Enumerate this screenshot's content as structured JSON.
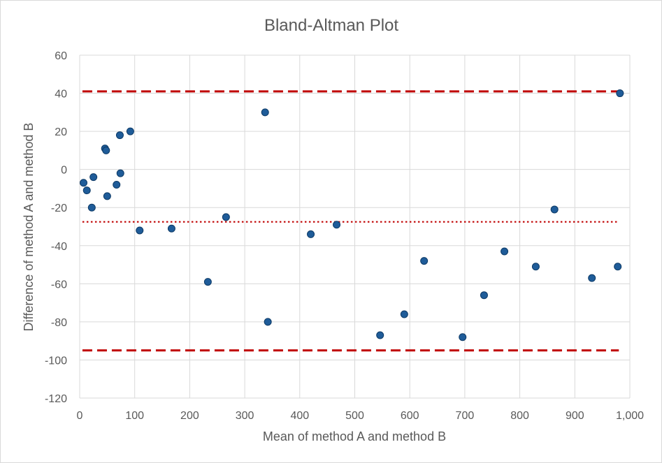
{
  "chart_data": {
    "type": "scatter",
    "title": "Bland-Altman Plot",
    "xlabel": "Mean of method A and method B",
    "ylabel": "Difference of method A and method B",
    "xlim": [
      0,
      1000
    ],
    "ylim": [
      -120,
      60
    ],
    "x_ticks": [
      0,
      100,
      200,
      300,
      400,
      500,
      600,
      700,
      800,
      900,
      1000
    ],
    "x_tick_labels": [
      "0",
      "100",
      "200",
      "300",
      "400",
      "500",
      "600",
      "700",
      "800",
      "900",
      "1,000"
    ],
    "y_ticks": [
      -120,
      -100,
      -80,
      -60,
      -40,
      -20,
      0,
      20,
      40,
      60
    ],
    "y_tick_labels": [
      "-120",
      "-100",
      "-80",
      "-60",
      "-40",
      "-20",
      "0",
      "20",
      "40",
      "60"
    ],
    "grid": true,
    "points": [
      {
        "x": 7,
        "y": -7
      },
      {
        "x": 13,
        "y": -11
      },
      {
        "x": 22,
        "y": -20
      },
      {
        "x": 25,
        "y": -4
      },
      {
        "x": 46,
        "y": 11
      },
      {
        "x": 48,
        "y": 10
      },
      {
        "x": 50,
        "y": -14
      },
      {
        "x": 67,
        "y": -8
      },
      {
        "x": 73,
        "y": 18
      },
      {
        "x": 74,
        "y": -2
      },
      {
        "x": 92,
        "y": 20
      },
      {
        "x": 109,
        "y": -32
      },
      {
        "x": 167,
        "y": -31
      },
      {
        "x": 233,
        "y": -59
      },
      {
        "x": 266,
        "y": -25
      },
      {
        "x": 337,
        "y": 30
      },
      {
        "x": 342,
        "y": -80
      },
      {
        "x": 420,
        "y": -34
      },
      {
        "x": 467,
        "y": -29
      },
      {
        "x": 546,
        "y": -87
      },
      {
        "x": 590,
        "y": -76
      },
      {
        "x": 626,
        "y": -48
      },
      {
        "x": 696,
        "y": -88
      },
      {
        "x": 735,
        "y": -66
      },
      {
        "x": 772,
        "y": -43
      },
      {
        "x": 829,
        "y": -51
      },
      {
        "x": 863,
        "y": -21
      },
      {
        "x": 931,
        "y": -57
      },
      {
        "x": 978,
        "y": -51
      },
      {
        "x": 982,
        "y": 40
      }
    ],
    "reference_lines": [
      {
        "name": "upper-limit",
        "y": 41,
        "style": "dashed",
        "color": "#c00000",
        "x_range": [
          5,
          980
        ]
      },
      {
        "name": "mean-difference",
        "y": -27.5,
        "style": "dotted",
        "color": "#c00000",
        "x_range": [
          5,
          980
        ]
      },
      {
        "name": "lower-limit",
        "y": -95,
        "style": "dashed",
        "color": "#c00000",
        "x_range": [
          5,
          980
        ]
      }
    ],
    "point_color": "#1f5c99",
    "point_stroke": "#0d3a66",
    "grid_color": "#d9d9d9"
  }
}
